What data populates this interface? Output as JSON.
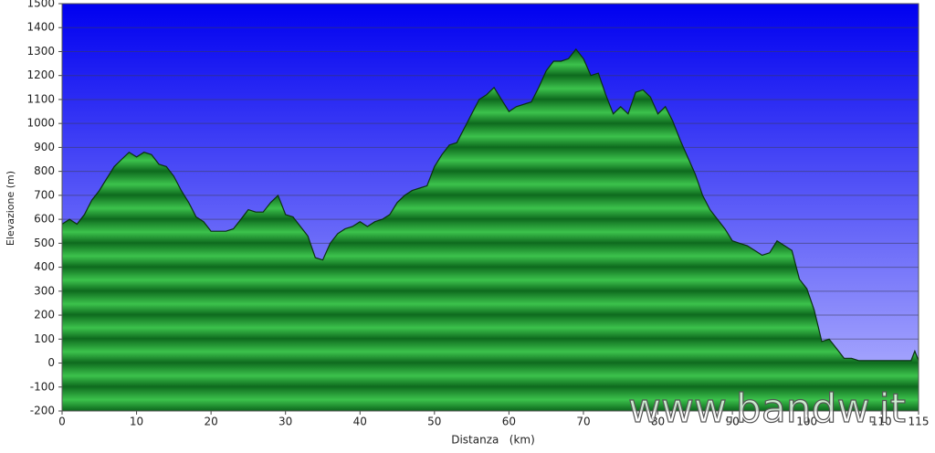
{
  "chart_data": {
    "type": "area",
    "x_label": "Distanza   (km)",
    "y_label": "Elevazione (m)",
    "watermark": "www.bandw.it",
    "x": [
      0,
      1,
      2,
      3,
      4,
      5,
      6,
      7,
      8,
      9,
      10,
      11,
      12,
      13,
      14,
      15,
      16,
      17,
      18,
      19,
      20,
      21,
      22,
      23,
      24,
      25,
      26,
      27,
      28,
      29,
      30,
      31,
      32,
      33,
      34,
      35,
      36,
      37,
      38,
      39,
      40,
      41,
      42,
      43,
      44,
      45,
      46,
      47,
      48,
      49,
      50,
      51,
      52,
      53,
      54,
      55,
      56,
      57,
      58,
      59,
      60,
      61,
      62,
      63,
      64,
      65,
      66,
      67,
      68,
      69,
      70,
      71,
      72,
      73,
      74,
      75,
      76,
      77,
      78,
      79,
      80,
      81,
      82,
      83,
      84,
      85,
      86,
      87,
      88,
      89,
      90,
      91,
      92,
      93,
      94,
      95,
      96,
      97,
      98,
      99,
      100,
      101,
      102,
      103,
      104,
      105,
      106,
      107,
      108,
      109,
      110,
      111,
      112,
      113,
      114,
      114.5,
      115
    ],
    "series": [
      {
        "name": "Elevazione",
        "color": "#1a8a2a",
        "values": [
          580,
          600,
          580,
          620,
          680,
          720,
          770,
          820,
          850,
          880,
          860,
          880,
          870,
          830,
          820,
          780,
          720,
          670,
          610,
          590,
          550,
          550,
          550,
          560,
          600,
          640,
          630,
          630,
          670,
          700,
          620,
          610,
          570,
          530,
          440,
          430,
          500,
          540,
          560,
          570,
          590,
          570,
          590,
          600,
          620,
          670,
          700,
          720,
          730,
          740,
          820,
          870,
          910,
          920,
          980,
          1040,
          1100,
          1120,
          1150,
          1100,
          1050,
          1070,
          1080,
          1090,
          1150,
          1220,
          1260,
          1260,
          1270,
          1310,
          1270,
          1200,
          1210,
          1120,
          1040,
          1070,
          1040,
          1130,
          1140,
          1110,
          1040,
          1070,
          1010,
          930,
          860,
          790,
          700,
          640,
          600,
          560,
          510,
          500,
          490,
          470,
          450,
          460,
          510,
          490,
          470,
          350,
          310,
          220,
          90,
          100,
          60,
          20,
          20,
          10,
          10,
          10,
          10,
          10,
          10,
          10,
          10,
          50,
          10
        ]
      }
    ],
    "xlim": [
      0,
      115
    ],
    "ylim": [
      -200,
      1500
    ],
    "xticks": [
      0,
      10,
      20,
      30,
      40,
      50,
      60,
      70,
      80,
      90,
      100,
      110,
      115
    ],
    "yticks": [
      -200,
      -100,
      0,
      100,
      200,
      300,
      400,
      500,
      600,
      700,
      800,
      900,
      1000,
      1100,
      1200,
      1300,
      1400,
      1500
    ],
    "grid": true
  }
}
